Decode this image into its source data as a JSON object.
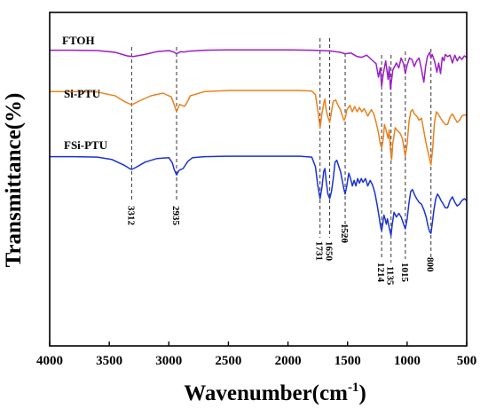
{
  "chart_data": {
    "type": "line",
    "title": "",
    "xlabel": "Wavenumber(cm",
    "xlabel_sup": "-1",
    "xlabel_close": ")",
    "ylabel": "Transmittance(%)",
    "xlim": [
      4000,
      500
    ],
    "x_ticks": [
      "4000",
      "3500",
      "3000",
      "2500",
      "2000",
      "1500",
      "1000",
      "500"
    ],
    "y_ticks_shown": false,
    "series": [
      {
        "name": "FTOH",
        "color": "#9b1fc6",
        "points": [
          [
            4000,
            0.93
          ],
          [
            3800,
            0.93
          ],
          [
            3600,
            0.925
          ],
          [
            3450,
            0.9
          ],
          [
            3350,
            0.85
          ],
          [
            3300,
            0.84
          ],
          [
            3200,
            0.87
          ],
          [
            3100,
            0.91
          ],
          [
            3000,
            0.925
          ],
          [
            2960,
            0.905
          ],
          [
            2935,
            0.88
          ],
          [
            2900,
            0.91
          ],
          [
            2870,
            0.905
          ],
          [
            2840,
            0.915
          ],
          [
            2700,
            0.93
          ],
          [
            2500,
            0.935
          ],
          [
            2000,
            0.935
          ],
          [
            1800,
            0.93
          ],
          [
            1650,
            0.92
          ],
          [
            1560,
            0.9
          ],
          [
            1520,
            0.88
          ],
          [
            1470,
            0.89
          ],
          [
            1420,
            0.84
          ],
          [
            1380,
            0.83
          ],
          [
            1340,
            0.86
          ],
          [
            1300,
            0.8
          ],
          [
            1260,
            0.74
          ],
          [
            1240,
            0.55
          ],
          [
            1225,
            0.68
          ],
          [
            1214,
            0.42
          ],
          [
            1200,
            0.6
          ],
          [
            1180,
            0.78
          ],
          [
            1160,
            0.52
          ],
          [
            1150,
            0.7
          ],
          [
            1140,
            0.38
          ],
          [
            1120,
            0.65
          ],
          [
            1090,
            0.75
          ],
          [
            1070,
            0.68
          ],
          [
            1050,
            0.82
          ],
          [
            1030,
            0.74
          ],
          [
            1015,
            0.6
          ],
          [
            1000,
            0.72
          ],
          [
            980,
            0.82
          ],
          [
            960,
            0.8
          ],
          [
            940,
            0.7
          ],
          [
            920,
            0.78
          ],
          [
            900,
            0.82
          ],
          [
            880,
            0.66
          ],
          [
            860,
            0.48
          ],
          [
            845,
            0.7
          ],
          [
            830,
            0.84
          ],
          [
            810,
            0.9
          ],
          [
            800,
            0.82
          ],
          [
            790,
            0.87
          ],
          [
            770,
            0.78
          ],
          [
            750,
            0.62
          ],
          [
            735,
            0.75
          ],
          [
            720,
            0.6
          ],
          [
            705,
            0.83
          ],
          [
            690,
            0.78
          ],
          [
            680,
            0.87
          ],
          [
            660,
            0.84
          ],
          [
            640,
            0.86
          ],
          [
            620,
            0.75
          ],
          [
            600,
            0.86
          ],
          [
            580,
            0.78
          ],
          [
            560,
            0.84
          ],
          [
            540,
            0.8
          ],
          [
            520,
            0.85
          ],
          [
            500,
            0.83
          ]
        ]
      },
      {
        "name": "Si-PTU",
        "color": "#e8821e",
        "points": [
          [
            4000,
            0.69
          ],
          [
            3800,
            0.69
          ],
          [
            3600,
            0.685
          ],
          [
            3450,
            0.65
          ],
          [
            3380,
            0.6
          ],
          [
            3312,
            0.565
          ],
          [
            3250,
            0.6
          ],
          [
            3150,
            0.65
          ],
          [
            3050,
            0.675
          ],
          [
            2980,
            0.64
          ],
          [
            2960,
            0.58
          ],
          [
            2935,
            0.5
          ],
          [
            2910,
            0.57
          ],
          [
            2870,
            0.55
          ],
          [
            2850,
            0.58
          ],
          [
            2820,
            0.65
          ],
          [
            2700,
            0.69
          ],
          [
            2500,
            0.7
          ],
          [
            2200,
            0.7
          ],
          [
            1900,
            0.7
          ],
          [
            1800,
            0.695
          ],
          [
            1770,
            0.66
          ],
          [
            1750,
            0.52
          ],
          [
            1731,
            0.35
          ],
          [
            1715,
            0.48
          ],
          [
            1700,
            0.58
          ],
          [
            1690,
            0.62
          ],
          [
            1680,
            0.52
          ],
          [
            1665,
            0.45
          ],
          [
            1650,
            0.4
          ],
          [
            1635,
            0.5
          ],
          [
            1620,
            0.6
          ],
          [
            1600,
            0.61
          ],
          [
            1580,
            0.56
          ],
          [
            1560,
            0.52
          ],
          [
            1540,
            0.45
          ],
          [
            1530,
            0.42
          ],
          [
            1520,
            0.44
          ],
          [
            1505,
            0.52
          ],
          [
            1480,
            0.56
          ],
          [
            1460,
            0.5
          ],
          [
            1440,
            0.55
          ],
          [
            1420,
            0.5
          ],
          [
            1400,
            0.54
          ],
          [
            1380,
            0.5
          ],
          [
            1360,
            0.53
          ],
          [
            1330,
            0.46
          ],
          [
            1300,
            0.52
          ],
          [
            1280,
            0.48
          ],
          [
            1260,
            0.4
          ],
          [
            1240,
            0.3
          ],
          [
            1225,
            0.2
          ],
          [
            1214,
            0.16
          ],
          [
            1200,
            0.25
          ],
          [
            1190,
            0.38
          ],
          [
            1175,
            0.32
          ],
          [
            1160,
            0.25
          ],
          [
            1150,
            0.33
          ],
          [
            1140,
            0.14
          ],
          [
            1130,
            0.05
          ],
          [
            1120,
            0.2
          ],
          [
            1100,
            0.35
          ],
          [
            1080,
            0.32
          ],
          [
            1060,
            0.3
          ],
          [
            1040,
            0.25
          ],
          [
            1025,
            0.15
          ],
          [
            1015,
            0.08
          ],
          [
            1000,
            0.2
          ],
          [
            985,
            0.4
          ],
          [
            970,
            0.5
          ],
          [
            955,
            0.52
          ],
          [
            940,
            0.48
          ],
          [
            920,
            0.46
          ],
          [
            900,
            0.42
          ],
          [
            880,
            0.44
          ],
          [
            860,
            0.32
          ],
          [
            840,
            0.2
          ],
          [
            820,
            0.1
          ],
          [
            800,
            0.0
          ],
          [
            785,
            0.16
          ],
          [
            770,
            0.4
          ],
          [
            755,
            0.5
          ],
          [
            740,
            0.48
          ],
          [
            720,
            0.44
          ],
          [
            700,
            0.41
          ],
          [
            680,
            0.38
          ],
          [
            660,
            0.38
          ],
          [
            640,
            0.45
          ],
          [
            620,
            0.48
          ],
          [
            600,
            0.44
          ],
          [
            580,
            0.4
          ],
          [
            560,
            0.42
          ],
          [
            540,
            0.46
          ],
          [
            520,
            0.47
          ],
          [
            500,
            0.47
          ]
        ]
      },
      {
        "name": "FSi-PTU",
        "color": "#1b33d4",
        "points": [
          [
            4000,
            0.46
          ],
          [
            3800,
            0.46
          ],
          [
            3600,
            0.455
          ],
          [
            3480,
            0.43
          ],
          [
            3380,
            0.37
          ],
          [
            3330,
            0.33
          ],
          [
            3312,
            0.32
          ],
          [
            3280,
            0.34
          ],
          [
            3200,
            0.4
          ],
          [
            3100,
            0.44
          ],
          [
            3000,
            0.45
          ],
          [
            2970,
            0.39
          ],
          [
            2955,
            0.32
          ],
          [
            2935,
            0.26
          ],
          [
            2915,
            0.31
          ],
          [
            2880,
            0.33
          ],
          [
            2860,
            0.37
          ],
          [
            2840,
            0.41
          ],
          [
            2800,
            0.45
          ],
          [
            2700,
            0.46
          ],
          [
            2500,
            0.465
          ],
          [
            2200,
            0.465
          ],
          [
            1900,
            0.465
          ],
          [
            1800,
            0.455
          ],
          [
            1770,
            0.35
          ],
          [
            1750,
            0.15
          ],
          [
            1731,
            0.0
          ],
          [
            1715,
            0.12
          ],
          [
            1700,
            0.3
          ],
          [
            1690,
            0.33
          ],
          [
            1680,
            0.2
          ],
          [
            1665,
            0.05
          ],
          [
            1650,
            0.0
          ],
          [
            1635,
            0.08
          ],
          [
            1620,
            0.22
          ],
          [
            1605,
            0.4
          ],
          [
            1590,
            0.42
          ],
          [
            1575,
            0.36
          ],
          [
            1560,
            0.3
          ],
          [
            1545,
            0.2
          ],
          [
            1530,
            0.1
          ],
          [
            1520,
            0.05
          ],
          [
            1505,
            0.15
          ],
          [
            1490,
            0.28
          ],
          [
            1475,
            0.22
          ],
          [
            1460,
            0.14
          ],
          [
            1445,
            0.2
          ],
          [
            1430,
            0.14
          ],
          [
            1415,
            0.22
          ],
          [
            1400,
            0.17
          ],
          [
            1385,
            0.22
          ],
          [
            1370,
            0.18
          ],
          [
            1350,
            0.22
          ],
          [
            1330,
            0.14
          ],
          [
            1310,
            0.2
          ],
          [
            1290,
            0.15
          ],
          [
            1270,
            0.06
          ],
          [
            1250,
            -0.08
          ],
          [
            1235,
            -0.2
          ],
          [
            1224,
            -0.3
          ],
          [
            1214,
            -0.35
          ],
          [
            1205,
            -0.28
          ],
          [
            1195,
            -0.18
          ],
          [
            1185,
            -0.22
          ],
          [
            1175,
            -0.28
          ],
          [
            1165,
            -0.22
          ],
          [
            1150,
            -0.32
          ],
          [
            1140,
            -0.38
          ],
          [
            1135,
            -0.4
          ],
          [
            1125,
            -0.28
          ],
          [
            1110,
            -0.15
          ],
          [
            1090,
            -0.2
          ],
          [
            1070,
            -0.16
          ],
          [
            1050,
            -0.2
          ],
          [
            1035,
            -0.26
          ],
          [
            1015,
            -0.33
          ],
          [
            1000,
            -0.22
          ],
          [
            985,
            -0.05
          ],
          [
            970,
            0.08
          ],
          [
            955,
            0.1
          ],
          [
            940,
            0.05
          ],
          [
            920,
            0.0
          ],
          [
            900,
            -0.04
          ],
          [
            880,
            -0.06
          ],
          [
            860,
            -0.12
          ],
          [
            840,
            -0.2
          ],
          [
            825,
            -0.3
          ],
          [
            812,
            -0.36
          ],
          [
            800,
            -0.38
          ],
          [
            790,
            -0.28
          ],
          [
            775,
            -0.12
          ],
          [
            760,
            0.0
          ],
          [
            745,
            0.05
          ],
          [
            730,
            0.02
          ],
          [
            715,
            -0.02
          ],
          [
            700,
            -0.05
          ],
          [
            680,
            -0.1
          ],
          [
            660,
            -0.1
          ],
          [
            640,
            -0.02
          ],
          [
            620,
            0.02
          ],
          [
            600,
            -0.04
          ],
          [
            580,
            -0.08
          ],
          [
            560,
            -0.06
          ],
          [
            540,
            -0.02
          ],
          [
            520,
            0.0
          ],
          [
            500,
            -0.02
          ]
        ]
      }
    ],
    "peak_lines": [
      {
        "x": 3312,
        "label": "3312"
      },
      {
        "x": 2935,
        "label": "2935"
      },
      {
        "x": 1731,
        "label": "1731"
      },
      {
        "x": 1650,
        "label": "1650"
      },
      {
        "x": 1520,
        "label": "1520"
      },
      {
        "x": 1214,
        "label": "1214"
      },
      {
        "x": 1135,
        "label": "1135"
      },
      {
        "x": 1015,
        "label": "1015"
      },
      {
        "x": 800,
        "label": "800"
      }
    ],
    "grid": false,
    "legend": "inline labels"
  }
}
